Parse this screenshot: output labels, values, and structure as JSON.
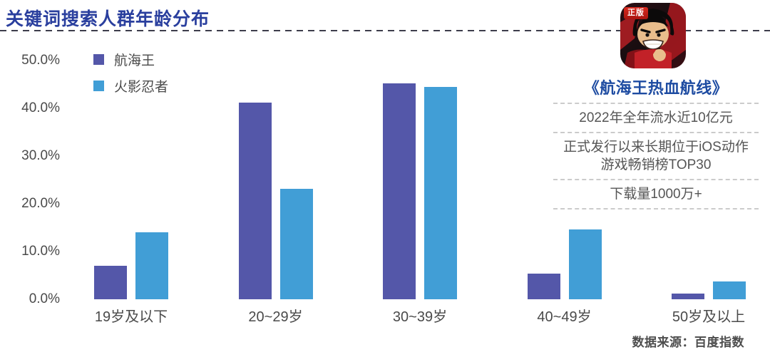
{
  "header": {
    "title": "关键词搜索人群年龄分布"
  },
  "colors": {
    "page_title": "#2a3f9e",
    "app_title": "#1d4ba1",
    "one_piece_purple": "#5457a9",
    "naruto_blue": "#419ed6",
    "axis_text": "#4a4a4a"
  },
  "chart_data": {
    "type": "bar",
    "title": "关键词搜索人群年龄分布",
    "categories": [
      "19岁及以下",
      "20~29岁",
      "30~39岁",
      "40~49岁",
      "50岁及以上"
    ],
    "series": [
      {
        "name": "航海王",
        "color": "#5457a9",
        "values": [
          7.0,
          41.2,
          45.2,
          5.4,
          1.2
        ]
      },
      {
        "name": "火影忍者",
        "color": "#419ed6",
        "values": [
          14.0,
          23.1,
          44.5,
          14.7,
          3.7
        ]
      }
    ],
    "unit": "%",
    "ylim": [
      0,
      50
    ],
    "yticks": [
      "50.0%",
      "40.0%",
      "30.0%",
      "20.0%",
      "10.0%",
      "0.0%"
    ],
    "grid": false,
    "legend_position": "top-left"
  },
  "right_panel": {
    "badge": "正版",
    "app_icon": "one-piece-luffy-app-icon",
    "app_title": "《航海王热血航线》",
    "facts": [
      "2022年全年流水近10亿元",
      "正式发行以来长期位于iOS动作游戏畅销榜TOP30",
      "下载量1000万+"
    ]
  },
  "footer": {
    "source": "数据来源：百度指数"
  }
}
